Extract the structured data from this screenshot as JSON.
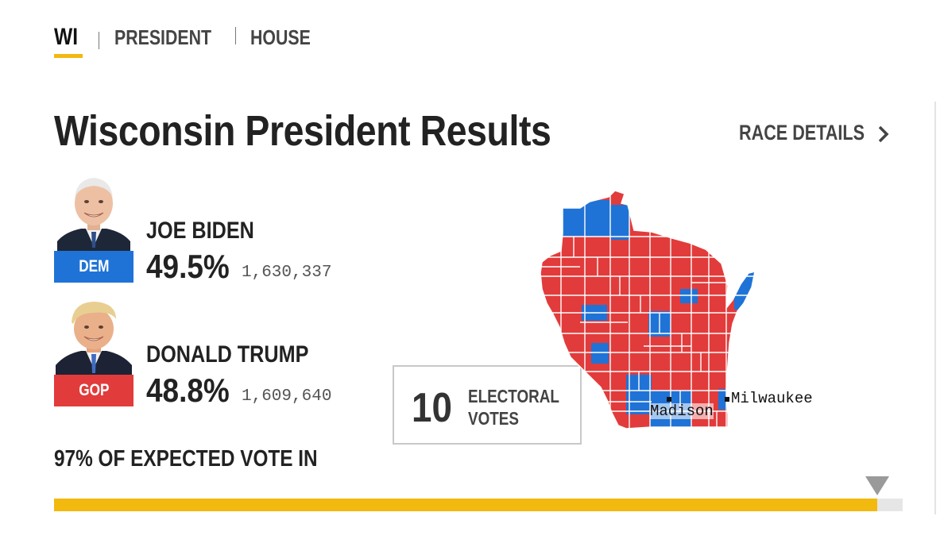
{
  "nav": {
    "state": "WI",
    "president": "PRESIDENT",
    "house": "HOUSE"
  },
  "page": {
    "title": "Wisconsin President Results",
    "race_details": "RACE DETAILS"
  },
  "candidates": [
    {
      "name": "JOE BIDEN",
      "party": "DEM",
      "pct": "49.5%",
      "votes": "1,630,337"
    },
    {
      "name": "DONALD TRUMP",
      "party": "GOP",
      "pct": "48.8%",
      "votes": "1,609,640"
    }
  ],
  "electoral": {
    "number": "10",
    "label_line1": "ELECTORAL",
    "label_line2": "VOTES"
  },
  "map": {
    "cities": [
      "Madison",
      "Milwaukee"
    ],
    "colors": {
      "dem": "#1f73d6",
      "gop": "#e23b3b"
    }
  },
  "expected_vote": {
    "label": "97% OF EXPECTED VOTE IN",
    "fraction": 0.97
  },
  "colors": {
    "accent": "#f2b90f",
    "dem": "#1f73d6",
    "gop": "#e23b3b"
  }
}
